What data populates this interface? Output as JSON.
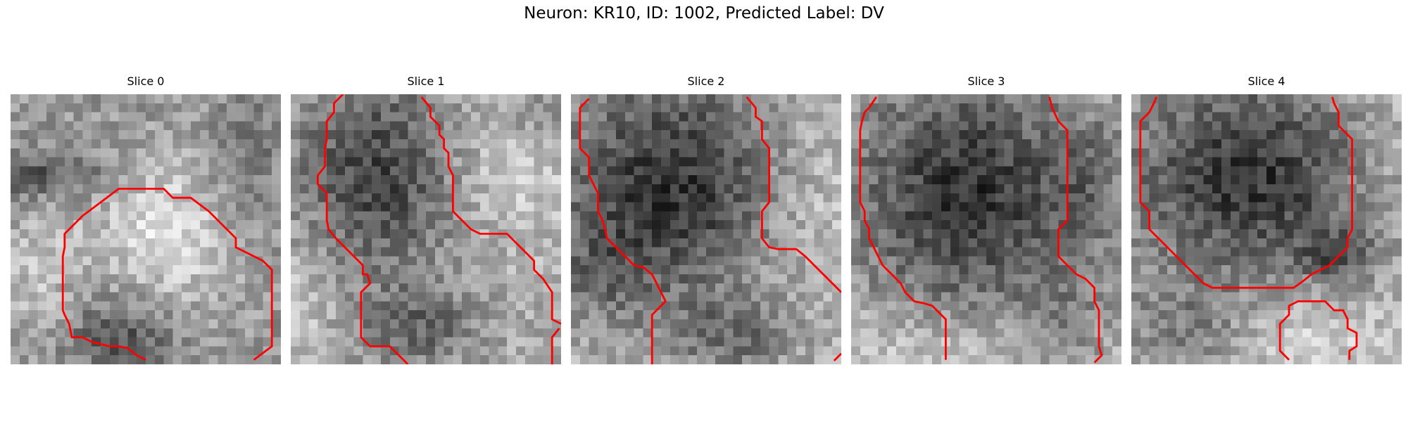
{
  "figure": {
    "title": "Neuron: KR10, ID: 1002, Predicted Label: DV"
  },
  "panels": [
    {
      "title": "Slice 0",
      "pattern": "bright-blob-center"
    },
    {
      "title": "Slice 1",
      "pattern": "dark-blob-upper-left"
    },
    {
      "title": "Slice 2",
      "pattern": "dark-blob-upper-center"
    },
    {
      "title": "Slice 3",
      "pattern": "dark-blob-center"
    },
    {
      "title": "Slice 4",
      "pattern": "dark-blob-center-top"
    }
  ],
  "colors": {
    "contour": "#ff0000",
    "background": "#ffffff"
  }
}
